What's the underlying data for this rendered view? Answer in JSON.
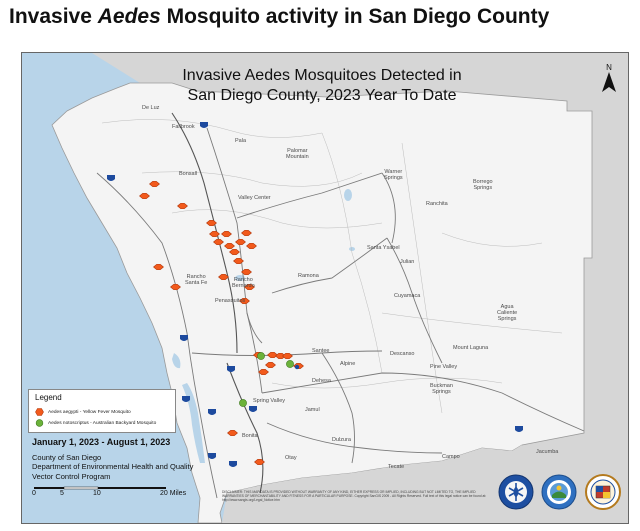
{
  "page_title": {
    "prefix": "Invasive ",
    "emphasis": "Aedes",
    "suffix": " Mosquito activity in San Diego County"
  },
  "map": {
    "heading_line1": "Invasive Aedes Mosquitoes Detected in",
    "heading_line2": "San Diego County, 2023 Year To Date",
    "north_label": "N",
    "places": {
      "de_luz": "De Luz",
      "fallbrook": "Fallbrook",
      "pala": "Pala",
      "palomar": "Palomar\nMountain",
      "warner": "Warner\nSprings",
      "borrego": "Borrego\nSprings",
      "bonsall": "Bonsall",
      "valley_center": "Valley Center",
      "ranchita": "Ranchita",
      "santa_ysabel": "Santa Ysabel",
      "julian": "Julian",
      "ramona": "Ramona",
      "rancho_bernardo": "Rancho\nBernardo",
      "rancho_santa_fe": "Rancho\nSanta Fe",
      "penasquitos": "Penasquitos",
      "cuyamaca": "Cuyamaca",
      "agua_caliente": "Agua\nCaliente\nSprings",
      "mount_laguna": "Mount Laguna",
      "descanso": "Descanso",
      "pine_valley": "Pine Valley",
      "alpine": "Alpine",
      "santee": "Santee",
      "dehesa": "Dehesa",
      "buckman": "Buckman\nSprings",
      "spring_valley": "Spring Valley",
      "jamul": "Jamul",
      "dulzura": "Dulzura",
      "campo": "Campo",
      "tecate": "Tecate",
      "jacumba": "Jacumba",
      "otay": "Otay",
      "bonita": "Bonita"
    },
    "legend": {
      "title": "Legend",
      "aegypti_label": "Aedes aegypti - Yellow Fever Mosquito",
      "aegypti_color": "#f25a1c",
      "notoscriptus_label": "Aedes notoscriptus - Australian Backyard Mosquito",
      "notoscriptus_color": "#6bb23a"
    },
    "date_range": "January 1, 2023 - August 1, 2023",
    "agency": {
      "line1": "County of San Diego",
      "line2": "Department of Environmental Health and Quality",
      "line3": "Vector Control Program"
    },
    "scale": {
      "tick0": "0",
      "tick1": "5",
      "tick2": "10",
      "tick3": "20 Miles"
    },
    "disclaimer": "DISCLAIMER: THIS MAP/DATA IS PROVIDED WITHOUT WARRANTY OF ANY KIND, EITHER EXPRESS OR IMPLIED, INCLUDING BUT NOT LIMITED TO, THE IMPLIED WARRANTIES OF MERCHANTABILITY AND FITNESS FOR A PARTICULAR PURPOSE. Copyright SanGIS 2009 - All Rights Reserved. Full text of this legal notice can be found at: http://www.sangis.org/Legal_Notice.htm",
    "colors": {
      "ocean": "#b8d4e9",
      "land": "#f4f4f4",
      "outside": "#d6d6d6"
    }
  }
}
